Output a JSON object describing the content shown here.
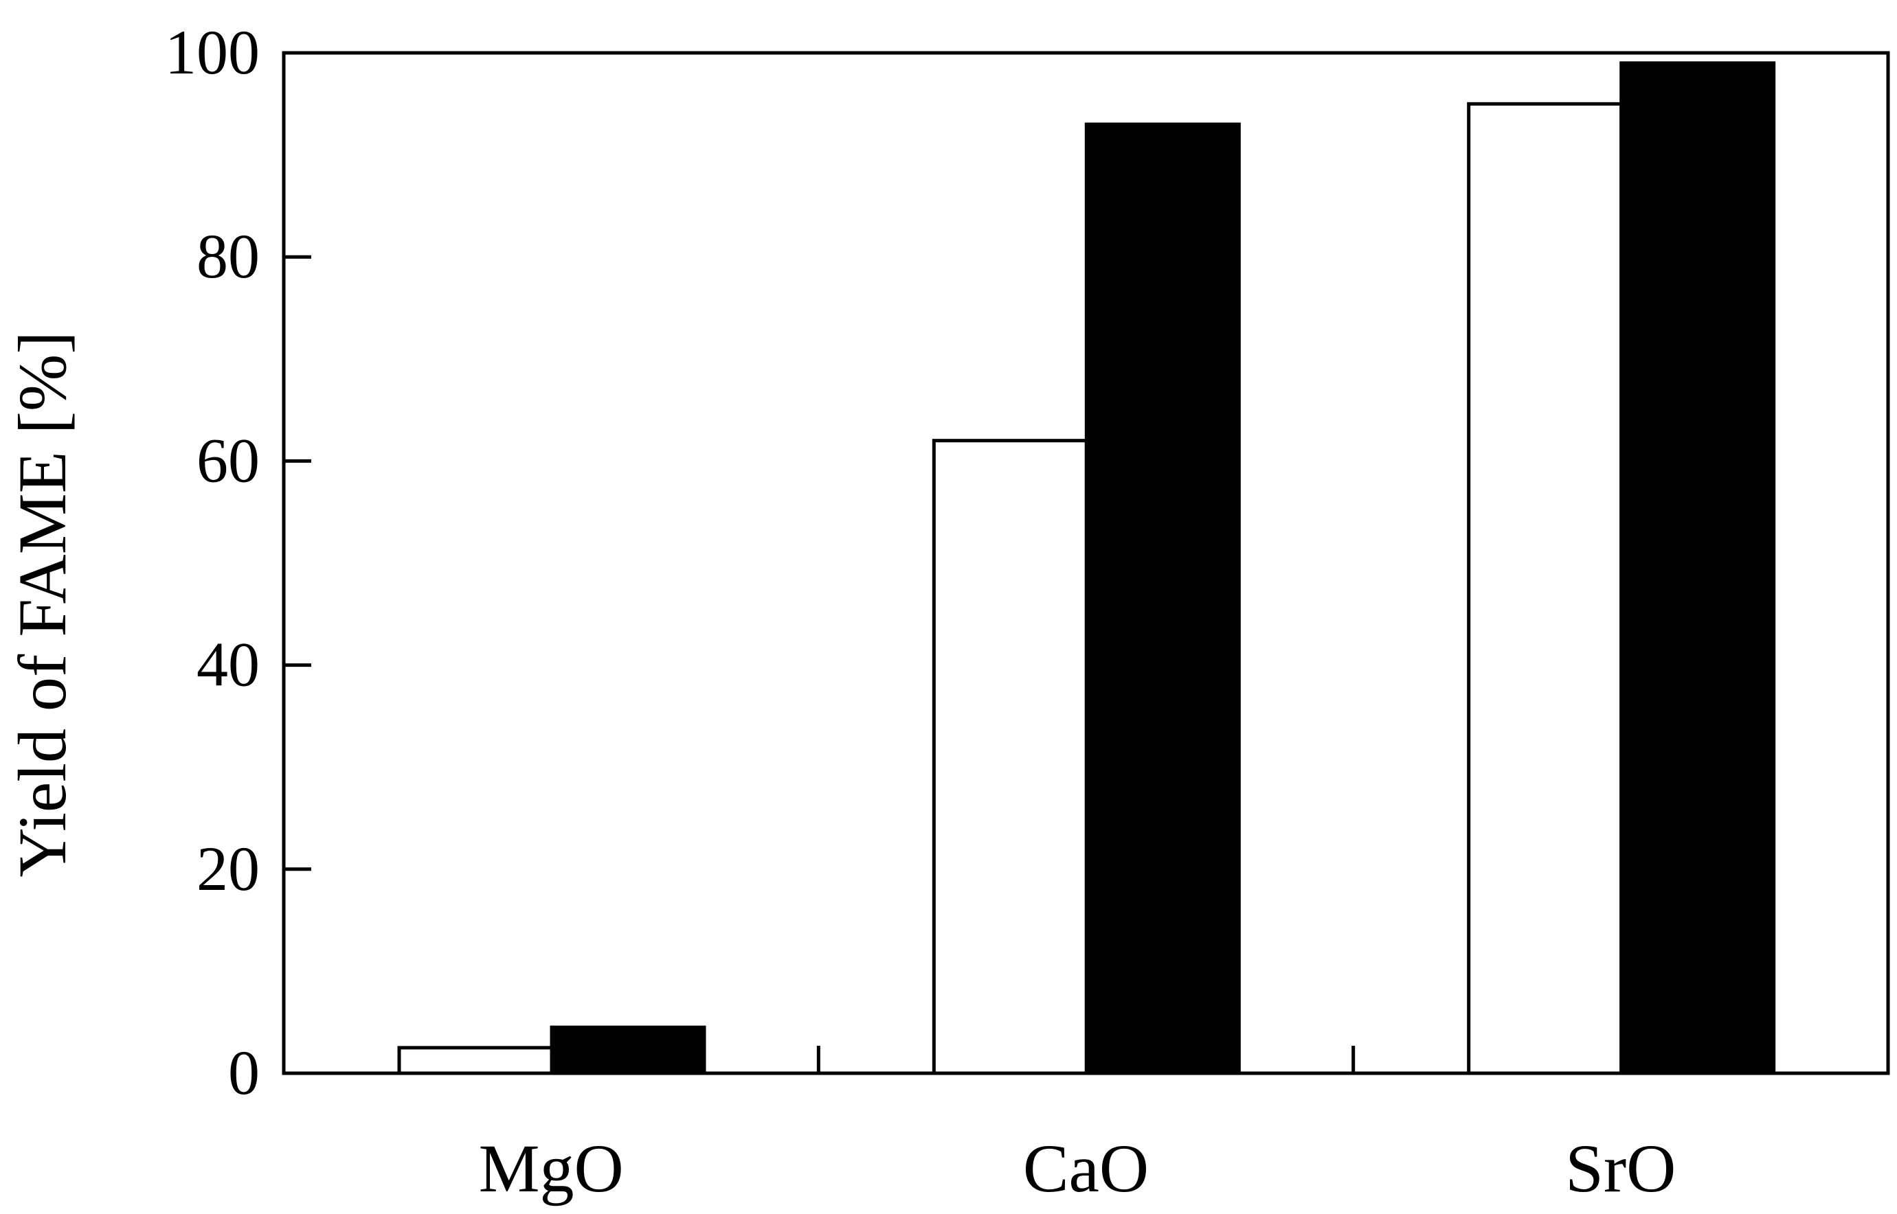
{
  "chart_data": {
    "type": "bar",
    "title": "",
    "xlabel": "",
    "ylabel": "Yield of FAME [%]",
    "categories": [
      "MgO",
      "CaO",
      "SrO"
    ],
    "series": [
      {
        "fill": "#ffffff",
        "values": [
          2.5,
          62,
          95
        ]
      },
      {
        "fill": "#000000",
        "values": [
          4.5,
          93,
          99
        ]
      }
    ],
    "ylim": [
      0,
      100
    ],
    "yticks": [
      0,
      20,
      40,
      60,
      80,
      100
    ],
    "grid": false,
    "legend": "none",
    "colors": {
      "axis": "#000000",
      "background": "#ffffff",
      "bar_stroke": "#000000"
    }
  }
}
